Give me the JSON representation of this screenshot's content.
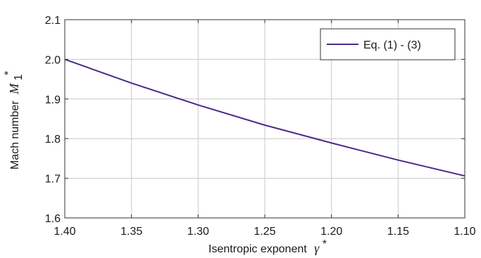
{
  "chart_data": {
    "type": "line",
    "xlabel": "Isentropic exponent",
    "xlabel_symbol": "γ",
    "xlabel_sup": "*",
    "ylabel": "Mach number",
    "ylabel_symbol": "M",
    "ylabel_sub": "1",
    "ylabel_sup": "*",
    "xlim": [
      1.4,
      1.1
    ],
    "x_reversed": true,
    "ylim": [
      1.6,
      2.1
    ],
    "xticks": [
      "1.40",
      "1.35",
      "1.30",
      "1.25",
      "1.20",
      "1.15",
      "1.10"
    ],
    "yticks": [
      "1.6",
      "1.7",
      "1.8",
      "1.9",
      "2.0",
      "2.1"
    ],
    "grid": true,
    "legend_position": "top-right",
    "series": [
      {
        "name": "Eq. (1) - (3)",
        "color": "#4b2a8a",
        "x": [
          1.4,
          1.35,
          1.3,
          1.25,
          1.2,
          1.15,
          1.1
        ],
        "y": [
          2.0,
          1.94,
          1.885,
          1.834,
          1.789,
          1.746,
          1.706
        ]
      }
    ]
  }
}
